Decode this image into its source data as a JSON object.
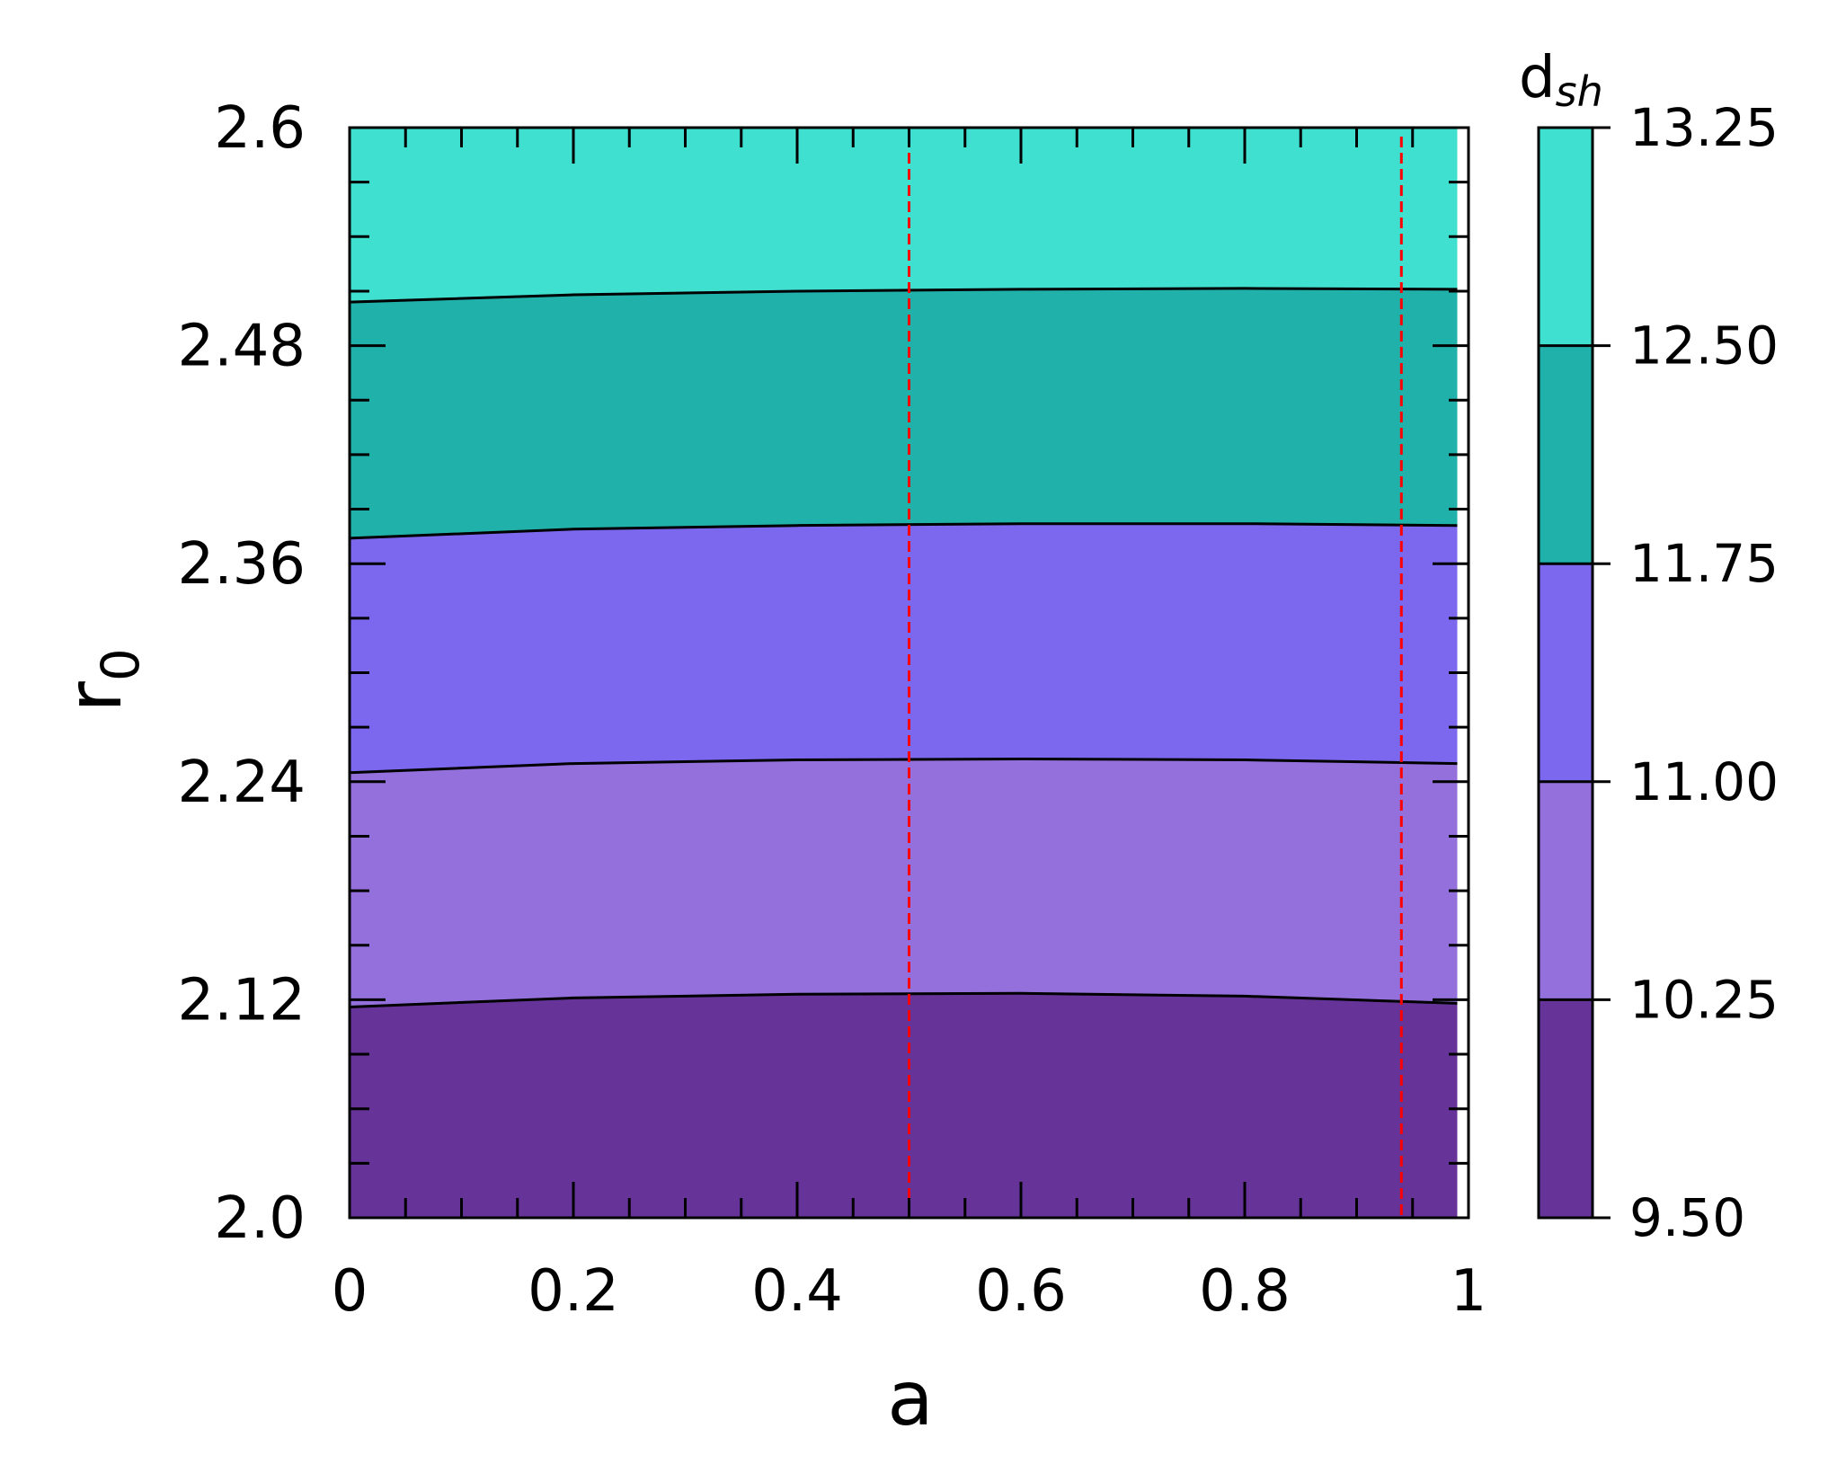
{
  "chart_data": {
    "type": "contourf",
    "xlabel": "a",
    "ylabel_base": "r",
    "ylabel_sub": "0",
    "xlim": [
      0,
      1
    ],
    "ylim": [
      2.0,
      2.6
    ],
    "x_ticks": [
      0,
      0.2,
      0.4,
      0.6,
      0.8,
      1
    ],
    "x_tick_labels": [
      "0",
      "0.2",
      "0.4",
      "0.6",
      "0.8",
      "1"
    ],
    "y_ticks": [
      2.0,
      2.12,
      2.24,
      2.36,
      2.48,
      2.6
    ],
    "y_tick_labels": [
      "2.0",
      "2.12",
      "2.24",
      "2.36",
      "2.48",
      "2.6"
    ],
    "data_x_max": 0.99,
    "colorbar": {
      "label_base": "d",
      "label_sub": "sh",
      "levels": [
        9.5,
        10.25,
        11.0,
        11.75,
        12.5,
        13.25
      ],
      "tick_labels": [
        "9.50",
        "10.25",
        "11.00",
        "11.75",
        "12.50",
        "13.25"
      ],
      "colors": [
        "#663399",
        "#9370db",
        "#7b68ee",
        "#20b2aa",
        "#40e0d0"
      ]
    },
    "contour_lines": [
      {
        "level": 10.25,
        "points": [
          [
            0,
            2.116
          ],
          [
            0.2,
            2.121
          ],
          [
            0.4,
            2.123
          ],
          [
            0.6,
            2.1235
          ],
          [
            0.8,
            2.122
          ],
          [
            0.99,
            2.118
          ]
        ]
      },
      {
        "level": 11.0,
        "points": [
          [
            0,
            2.245
          ],
          [
            0.2,
            2.25
          ],
          [
            0.4,
            2.252
          ],
          [
            0.6,
            2.2525
          ],
          [
            0.8,
            2.252
          ],
          [
            0.99,
            2.25
          ]
        ]
      },
      {
        "level": 11.75,
        "points": [
          [
            0,
            2.374
          ],
          [
            0.2,
            2.379
          ],
          [
            0.4,
            2.381
          ],
          [
            0.6,
            2.382
          ],
          [
            0.8,
            2.382
          ],
          [
            0.99,
            2.381
          ]
        ]
      },
      {
        "level": 12.5,
        "points": [
          [
            0,
            2.504
          ],
          [
            0.2,
            2.508
          ],
          [
            0.4,
            2.51
          ],
          [
            0.6,
            2.511
          ],
          [
            0.8,
            2.5115
          ],
          [
            0.99,
            2.511
          ]
        ]
      }
    ],
    "vlines": [
      {
        "x": 0.5,
        "color": "#ff0000",
        "style": "dashed"
      },
      {
        "x": 0.94,
        "color": "#ff0000",
        "style": "dashed"
      }
    ]
  }
}
